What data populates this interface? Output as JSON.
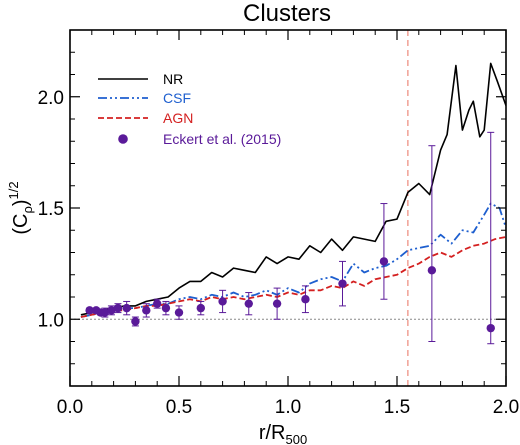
{
  "chart_data": {
    "type": "line",
    "title": "Clusters",
    "xlabel": "r/R",
    "xlabel_sub": "500",
    "ylabel": "(C",
    "ylabel_sub": "ρ",
    "ylabel_tail": ")",
    "ylabel_sup": "1/2",
    "xlim": [
      0.0,
      2.0
    ],
    "ylim": [
      0.7,
      2.3
    ],
    "xticks": [
      "0.0",
      "0.5",
      "1.0",
      "1.5",
      "2.0"
    ],
    "yticks": [
      "1.0",
      "1.5",
      "2.0"
    ],
    "xtick_values": [
      0.0,
      0.5,
      1.0,
      1.5,
      2.0
    ],
    "ytick_values": [
      1.0,
      1.5,
      2.0
    ],
    "reference_line": {
      "y": 1.0,
      "style": "dotted",
      "color": "#888888"
    },
    "vertical_line": {
      "x": 1.55,
      "style": "dashed",
      "color": "#e87060"
    },
    "legend_position": "top-left",
    "series": [
      {
        "name": "NR",
        "color": "#000000",
        "style": "solid",
        "x": [
          0.05,
          0.1,
          0.15,
          0.2,
          0.25,
          0.3,
          0.35,
          0.4,
          0.45,
          0.5,
          0.55,
          0.6,
          0.65,
          0.7,
          0.75,
          0.8,
          0.85,
          0.9,
          0.95,
          1.0,
          1.05,
          1.1,
          1.15,
          1.2,
          1.25,
          1.3,
          1.35,
          1.4,
          1.45,
          1.5,
          1.55,
          1.6,
          1.65,
          1.7,
          1.73,
          1.77,
          1.8,
          1.83,
          1.85,
          1.88,
          1.9,
          1.93,
          1.96,
          2.0
        ],
        "y": [
          1.02,
          1.03,
          1.04,
          1.05,
          1.06,
          1.06,
          1.08,
          1.09,
          1.1,
          1.14,
          1.17,
          1.17,
          1.21,
          1.19,
          1.23,
          1.22,
          1.21,
          1.28,
          1.25,
          1.28,
          1.27,
          1.33,
          1.3,
          1.36,
          1.31,
          1.37,
          1.36,
          1.35,
          1.44,
          1.45,
          1.57,
          1.61,
          1.56,
          1.76,
          1.83,
          2.14,
          1.85,
          1.94,
          1.98,
          1.82,
          1.85,
          2.15,
          2.07,
          1.96
        ]
      },
      {
        "name": "CSF",
        "color": "#1e5fcf",
        "style": "dash-dot-dot",
        "x": [
          0.05,
          0.1,
          0.15,
          0.2,
          0.25,
          0.3,
          0.35,
          0.4,
          0.45,
          0.5,
          0.55,
          0.6,
          0.65,
          0.7,
          0.75,
          0.8,
          0.85,
          0.9,
          0.95,
          1.0,
          1.05,
          1.1,
          1.15,
          1.2,
          1.25,
          1.3,
          1.35,
          1.4,
          1.45,
          1.5,
          1.55,
          1.6,
          1.65,
          1.7,
          1.75,
          1.8,
          1.85,
          1.9,
          1.93,
          1.97,
          2.0
        ],
        "y": [
          1.01,
          1.02,
          1.03,
          1.04,
          1.05,
          1.05,
          1.06,
          1.07,
          1.07,
          1.09,
          1.1,
          1.09,
          1.11,
          1.1,
          1.12,
          1.1,
          1.11,
          1.13,
          1.11,
          1.14,
          1.12,
          1.16,
          1.18,
          1.19,
          1.17,
          1.25,
          1.21,
          1.23,
          1.24,
          1.27,
          1.31,
          1.32,
          1.33,
          1.38,
          1.34,
          1.4,
          1.39,
          1.47,
          1.52,
          1.5,
          1.41
        ]
      },
      {
        "name": "AGN",
        "color": "#d42020",
        "style": "dashed",
        "x": [
          0.05,
          0.1,
          0.15,
          0.2,
          0.25,
          0.3,
          0.35,
          0.4,
          0.45,
          0.5,
          0.55,
          0.6,
          0.65,
          0.7,
          0.75,
          0.8,
          0.85,
          0.9,
          0.95,
          1.0,
          1.05,
          1.1,
          1.15,
          1.2,
          1.25,
          1.3,
          1.35,
          1.4,
          1.45,
          1.5,
          1.55,
          1.6,
          1.65,
          1.7,
          1.75,
          1.8,
          1.85,
          1.9,
          1.95,
          2.0
        ],
        "y": [
          1.01,
          1.02,
          1.03,
          1.04,
          1.04,
          1.05,
          1.06,
          1.06,
          1.07,
          1.08,
          1.09,
          1.08,
          1.1,
          1.09,
          1.1,
          1.09,
          1.1,
          1.11,
          1.1,
          1.12,
          1.11,
          1.13,
          1.13,
          1.15,
          1.14,
          1.17,
          1.15,
          1.18,
          1.19,
          1.2,
          1.23,
          1.25,
          1.28,
          1.3,
          1.28,
          1.31,
          1.33,
          1.34,
          1.36,
          1.37
        ]
      }
    ],
    "observations": {
      "name": "Eckert et al. (2015)",
      "color": "#5a1a99",
      "x": [
        0.09,
        0.12,
        0.14,
        0.16,
        0.19,
        0.22,
        0.26,
        0.3,
        0.35,
        0.4,
        0.44,
        0.5,
        0.6,
        0.7,
        0.82,
        0.95,
        1.08,
        1.25,
        1.44,
        1.66,
        1.93
      ],
      "y": [
        1.04,
        1.04,
        1.03,
        1.03,
        1.04,
        1.05,
        1.05,
        0.99,
        1.04,
        1.07,
        1.05,
        1.03,
        1.05,
        1.08,
        1.07,
        1.07,
        1.09,
        1.16,
        1.26,
        1.22,
        0.96
      ],
      "err_low": [
        0.01,
        0.01,
        0.01,
        0.02,
        0.02,
        0.02,
        0.03,
        0.02,
        0.03,
        0.02,
        0.03,
        0.03,
        0.03,
        0.05,
        0.05,
        0.07,
        0.06,
        0.1,
        0.17,
        0.32,
        0.07
      ],
      "err_high": [
        0.01,
        0.01,
        0.01,
        0.02,
        0.02,
        0.02,
        0.03,
        0.02,
        0.03,
        0.02,
        0.03,
        0.03,
        0.03,
        0.05,
        0.05,
        0.07,
        0.06,
        0.1,
        0.26,
        0.56,
        0.88
      ]
    }
  }
}
